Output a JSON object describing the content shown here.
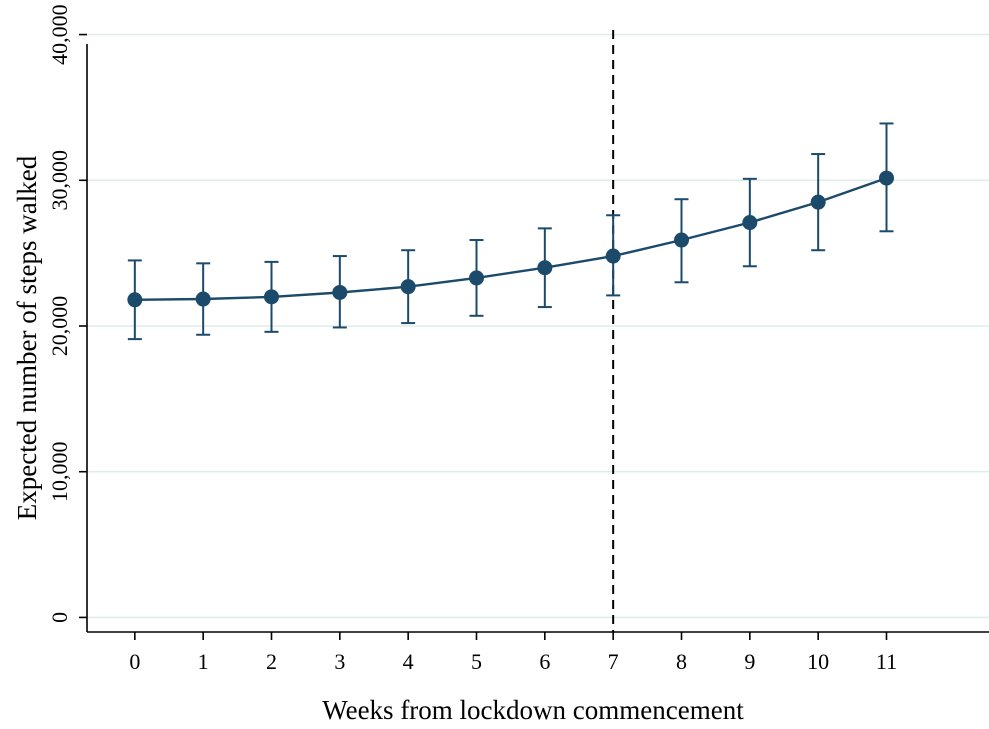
{
  "chart_data": {
    "type": "line",
    "title": "",
    "xlabel": "Weeks from lockdown commencement",
    "ylabel": "Expected number of steps walked",
    "x": [
      0,
      1,
      2,
      3,
      4,
      5,
      6,
      7,
      8,
      9,
      10,
      11
    ],
    "series": [
      {
        "values": [
          21800,
          21850,
          22000,
          22300,
          22700,
          23300,
          24000,
          24800,
          25900,
          27100,
          28500,
          30150
        ],
        "ci_lower": [
          19100,
          19400,
          19600,
          19900,
          20200,
          20700,
          21300,
          22100,
          23000,
          24100,
          25200,
          26500
        ],
        "ci_upper": [
          24500,
          24300,
          24400,
          24800,
          25200,
          25900,
          26700,
          27600,
          28700,
          30100,
          31800,
          33900
        ]
      }
    ],
    "x_ticks": [
      "0",
      "1",
      "2",
      "3",
      "4",
      "5",
      "6",
      "7",
      "8",
      "9",
      "10",
      "11"
    ],
    "y_ticks": [
      "0",
      "10,000",
      "20,000",
      "30,000",
      "40,000"
    ],
    "y_tick_values": [
      0,
      10000,
      20000,
      30000,
      40000
    ],
    "xlim": [
      -0.7,
      12.5
    ],
    "ylim": [
      -1000,
      41000
    ],
    "reference_line_x": 7,
    "grid": true,
    "colors": {
      "series": "#1b4a6b",
      "grid": "#e2ebeb",
      "reference_line": "#000000",
      "axis": "#000000"
    }
  }
}
